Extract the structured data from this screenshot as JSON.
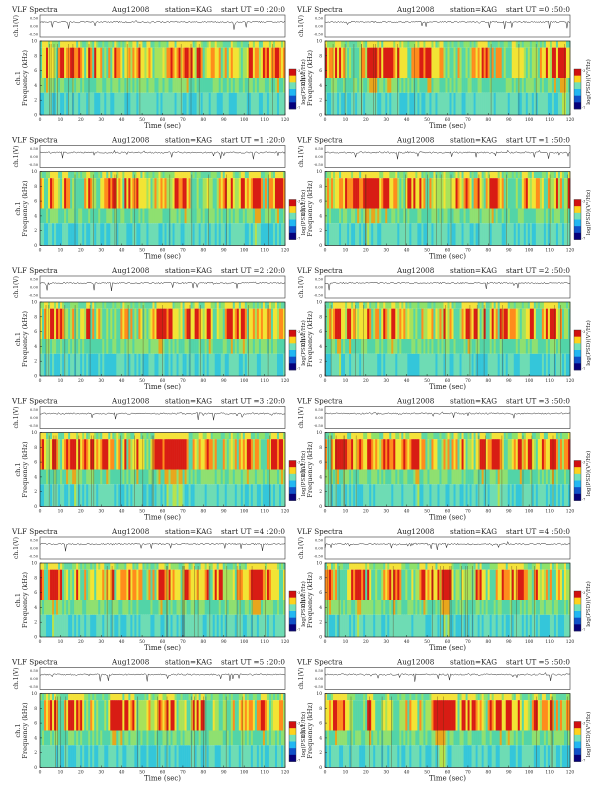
{
  "chart_data": [
    {
      "type": "heatmap",
      "title": "VLF Spectra",
      "date": "Aug12008",
      "station": "station=KAG",
      "start": "start UT =0 :20:0",
      "xlabel": "Time (sec)",
      "ylabel": "Frequency (kHz)",
      "channel_label": "ch.1",
      "amp_label": "ch.1(V)",
      "cbar_label": "log(PSD)(V²/Hz)",
      "xlim": [
        0,
        120
      ],
      "ylim": [
        0,
        10
      ],
      "xticks": [
        0,
        10,
        20,
        30,
        40,
        50,
        60,
        70,
        80,
        90,
        100,
        110,
        120
      ],
      "yticks": [
        0,
        2,
        4,
        6,
        8,
        10
      ],
      "amp_ticks": [
        "0.50",
        "0.00",
        "-0.50"
      ],
      "cbar_ticks": [
        "-3",
        "-7"
      ],
      "cbar_colors": [
        "#d01010",
        "#ffd21c",
        "#72e0b8",
        "#22b7f2",
        "#1050c8",
        "#06007a"
      ]
    },
    {
      "type": "heatmap",
      "title": "VLF Spectra",
      "date": "Aug12008",
      "station": "station=KAG",
      "start": "start UT =0 :50:0",
      "xlabel": "Time (sec)",
      "ylabel": "Frequency (kHz)",
      "channel_label": "ch.1",
      "amp_label": "ch.1(V)",
      "cbar_label": "log(PSD)(V²/Hz)",
      "xlim": [
        0,
        120
      ],
      "ylim": [
        0,
        10
      ],
      "xticks": [
        0,
        10,
        20,
        30,
        40,
        50,
        60,
        70,
        80,
        90,
        100,
        110,
        120
      ],
      "yticks": [
        0,
        2,
        4,
        6,
        8,
        10
      ],
      "amp_ticks": [
        "0.50",
        "0.00",
        "-0.50"
      ],
      "cbar_ticks": [
        "-3",
        "-7"
      ],
      "cbar_colors": [
        "#d01010",
        "#ffd21c",
        "#72e0b8",
        "#22b7f2",
        "#1050c8",
        "#06007a"
      ]
    },
    {
      "type": "heatmap",
      "title": "VLF Spectra",
      "date": "Aug12008",
      "station": "station=KAG",
      "start": "start UT =1 :20:0",
      "xlabel": "Time (sec)",
      "ylabel": "Frequency (kHz)",
      "channel_label": "ch.1",
      "amp_label": "ch.1(V)",
      "cbar_label": "log(PSD)(V²/Hz)",
      "xlim": [
        0,
        120
      ],
      "ylim": [
        0,
        10
      ],
      "xticks": [
        0,
        10,
        20,
        30,
        40,
        50,
        60,
        70,
        80,
        90,
        100,
        110,
        120
      ],
      "yticks": [
        0,
        2,
        4,
        6,
        8,
        10
      ],
      "amp_ticks": [
        "0.50",
        "0.00",
        "-0.50"
      ],
      "cbar_ticks": [
        "-3",
        "-7"
      ],
      "cbar_colors": [
        "#d01010",
        "#ffd21c",
        "#72e0b8",
        "#22b7f2",
        "#1050c8",
        "#06007a"
      ]
    },
    {
      "type": "heatmap",
      "title": "VLF Spectra",
      "date": "Aug12008",
      "station": "station=KAG",
      "start": "start UT =1 :50:0",
      "xlabel": "Time (sec)",
      "ylabel": "Frequency (kHz)",
      "channel_label": "ch.1",
      "amp_label": "ch.1(V)",
      "cbar_label": "log(PSD)(V²/Hz)",
      "xlim": [
        0,
        120
      ],
      "ylim": [
        0,
        10
      ],
      "xticks": [
        0,
        10,
        20,
        30,
        40,
        50,
        60,
        70,
        80,
        90,
        100,
        110,
        120
      ],
      "yticks": [
        0,
        2,
        4,
        6,
        8,
        10
      ],
      "amp_ticks": [
        "0.50",
        "0.00",
        "-0.50"
      ],
      "cbar_ticks": [
        "-3",
        "-7"
      ],
      "cbar_colors": [
        "#d01010",
        "#ffd21c",
        "#72e0b8",
        "#22b7f2",
        "#1050c8",
        "#06007a"
      ]
    },
    {
      "type": "heatmap",
      "title": "VLF Spectra",
      "date": "Aug12008",
      "station": "station=KAG",
      "start": "start UT =2 :20:0",
      "xlabel": "Time (sec)",
      "ylabel": "Frequency (kHz)",
      "channel_label": "ch.1",
      "amp_label": "ch.1(V)",
      "cbar_label": "log(PSD)(V²/Hz)",
      "xlim": [
        0,
        120
      ],
      "ylim": [
        0,
        10
      ],
      "xticks": [
        0,
        10,
        20,
        30,
        40,
        50,
        60,
        70,
        80,
        90,
        100,
        110,
        120
      ],
      "yticks": [
        0,
        2,
        4,
        6,
        8,
        10
      ],
      "amp_ticks": [
        "0.50",
        "0.00",
        "-0.50"
      ],
      "cbar_ticks": [
        "-3",
        "-7"
      ],
      "cbar_colors": [
        "#d01010",
        "#ffd21c",
        "#72e0b8",
        "#22b7f2",
        "#1050c8",
        "#06007a"
      ]
    },
    {
      "type": "heatmap",
      "title": "VLF Spectra",
      "date": "Aug12008",
      "station": "station=KAG",
      "start": "start UT =2 :50:0",
      "xlabel": "Time (sec)",
      "ylabel": "Frequency (kHz)",
      "channel_label": "ch.1",
      "amp_label": "ch.1(V)",
      "cbar_label": "log(PSD)(V²/Hz)",
      "xlim": [
        0,
        120
      ],
      "ylim": [
        0,
        10
      ],
      "xticks": [
        0,
        10,
        20,
        30,
        40,
        50,
        60,
        70,
        80,
        90,
        100,
        110,
        120
      ],
      "yticks": [
        0,
        2,
        4,
        6,
        8,
        10
      ],
      "amp_ticks": [
        "0.50",
        "0.00",
        "-0.50"
      ],
      "cbar_ticks": [
        "-3",
        "-7"
      ],
      "cbar_colors": [
        "#d01010",
        "#ffd21c",
        "#72e0b8",
        "#22b7f2",
        "#1050c8",
        "#06007a"
      ]
    },
    {
      "type": "heatmap",
      "title": "VLF Spectra",
      "date": "Aug12008",
      "station": "station=KAG",
      "start": "start UT =3 :20:0",
      "xlabel": "Time (sec)",
      "ylabel": "Frequency (kHz)",
      "channel_label": "ch.1",
      "amp_label": "ch.1(V)",
      "cbar_label": "log(PSD)(V²/Hz)",
      "xlim": [
        0,
        120
      ],
      "ylim": [
        0,
        10
      ],
      "xticks": [
        0,
        10,
        20,
        30,
        40,
        50,
        60,
        70,
        80,
        90,
        100,
        110,
        120
      ],
      "yticks": [
        0,
        2,
        4,
        6,
        8,
        10
      ],
      "amp_ticks": [
        "0.50",
        "0.00",
        "-0.50"
      ],
      "cbar_ticks": [
        "-3",
        "-7"
      ],
      "cbar_colors": [
        "#d01010",
        "#ffd21c",
        "#72e0b8",
        "#22b7f2",
        "#1050c8",
        "#06007a"
      ]
    },
    {
      "type": "heatmap",
      "title": "VLF Spectra",
      "date": "Aug12008",
      "station": "station=KAG",
      "start": "start UT =3 :50:0",
      "xlabel": "Time (sec)",
      "ylabel": "Frequency (kHz)",
      "channel_label": "ch.1",
      "amp_label": "ch.1(V)",
      "cbar_label": "log(PSD)(V²/Hz)",
      "xlim": [
        0,
        120
      ],
      "ylim": [
        0,
        10
      ],
      "xticks": [
        0,
        10,
        20,
        30,
        40,
        50,
        60,
        70,
        80,
        90,
        100,
        110,
        120
      ],
      "yticks": [
        0,
        2,
        4,
        6,
        8,
        10
      ],
      "amp_ticks": [
        "0.50",
        "0.00",
        "-0.50"
      ],
      "cbar_ticks": [
        "-3",
        "-7"
      ],
      "cbar_colors": [
        "#d01010",
        "#ffd21c",
        "#72e0b8",
        "#22b7f2",
        "#1050c8",
        "#06007a"
      ]
    },
    {
      "type": "heatmap",
      "title": "VLF Spectra",
      "date": "Aug12008",
      "station": "station=KAG",
      "start": "start UT =4 :20:0",
      "xlabel": "Time (sec)",
      "ylabel": "Frequency (kHz)",
      "channel_label": "ch.1",
      "amp_label": "ch.1(V)",
      "cbar_label": "log(PSD)(V²/Hz)",
      "xlim": [
        0,
        120
      ],
      "ylim": [
        0,
        10
      ],
      "xticks": [
        0,
        10,
        20,
        30,
        40,
        50,
        60,
        70,
        80,
        90,
        100,
        110,
        120
      ],
      "yticks": [
        0,
        2,
        4,
        6,
        8,
        10
      ],
      "amp_ticks": [
        "0.50",
        "0.00",
        "-0.50"
      ],
      "cbar_ticks": [
        "-3",
        "-7"
      ],
      "cbar_colors": [
        "#d01010",
        "#ffd21c",
        "#72e0b8",
        "#22b7f2",
        "#1050c8",
        "#06007a"
      ]
    },
    {
      "type": "heatmap",
      "title": "VLF Spectra",
      "date": "Aug12008",
      "station": "station=KAG",
      "start": "start UT =4 :50:0",
      "xlabel": "Time (sec)",
      "ylabel": "Frequency (kHz)",
      "channel_label": "ch.1",
      "amp_label": "ch.1(V)",
      "cbar_label": "log(PSD)(V²/Hz)",
      "xlim": [
        0,
        120
      ],
      "ylim": [
        0,
        10
      ],
      "xticks": [
        0,
        10,
        20,
        30,
        40,
        50,
        60,
        70,
        80,
        90,
        100,
        110,
        120
      ],
      "yticks": [
        0,
        2,
        4,
        6,
        8,
        10
      ],
      "amp_ticks": [
        "0.50",
        "0.00",
        "-0.50"
      ],
      "cbar_ticks": [
        "-3",
        "-7"
      ],
      "cbar_colors": [
        "#d01010",
        "#ffd21c",
        "#72e0b8",
        "#22b7f2",
        "#1050c8",
        "#06007a"
      ]
    },
    {
      "type": "heatmap",
      "title": "VLF Spectra",
      "date": "Aug12008",
      "station": "station=KAG",
      "start": "start UT =5 :20:0",
      "xlabel": "Time (sec)",
      "ylabel": "Frequency (kHz)",
      "channel_label": "ch.1",
      "amp_label": "ch.1(V)",
      "cbar_label": "log(PSD)(V²/Hz)",
      "xlim": [
        0,
        120
      ],
      "ylim": [
        0,
        10
      ],
      "xticks": [
        0,
        10,
        20,
        30,
        40,
        50,
        60,
        70,
        80,
        90,
        100,
        110,
        120
      ],
      "yticks": [
        0,
        2,
        4,
        6,
        8,
        10
      ],
      "amp_ticks": [
        "0.50",
        "0.00",
        "-0.50"
      ],
      "cbar_ticks": [
        "-3",
        "-7"
      ],
      "cbar_colors": [
        "#d01010",
        "#ffd21c",
        "#72e0b8",
        "#22b7f2",
        "#1050c8",
        "#06007a"
      ]
    },
    {
      "type": "heatmap",
      "title": "VLF Spectra",
      "date": "Aug12008",
      "station": "station=KAG",
      "start": "start UT =5 :50:0",
      "xlabel": "Time (sec)",
      "ylabel": "Frequency (kHz)",
      "channel_label": "ch.1",
      "amp_label": "ch.1(V)",
      "cbar_label": "log(PSD)(V²/Hz)",
      "xlim": [
        0,
        120
      ],
      "ylim": [
        0,
        10
      ],
      "xticks": [
        0,
        10,
        20,
        30,
        40,
        50,
        60,
        70,
        80,
        90,
        100,
        110,
        120
      ],
      "yticks": [
        0,
        2,
        4,
        6,
        8,
        10
      ],
      "amp_ticks": [
        "0.50",
        "0.00",
        "-0.50"
      ],
      "cbar_ticks": [
        "-3",
        "-7"
      ],
      "cbar_colors": [
        "#d01010",
        "#ffd21c",
        "#72e0b8",
        "#22b7f2",
        "#1050c8",
        "#06007a"
      ]
    }
  ]
}
